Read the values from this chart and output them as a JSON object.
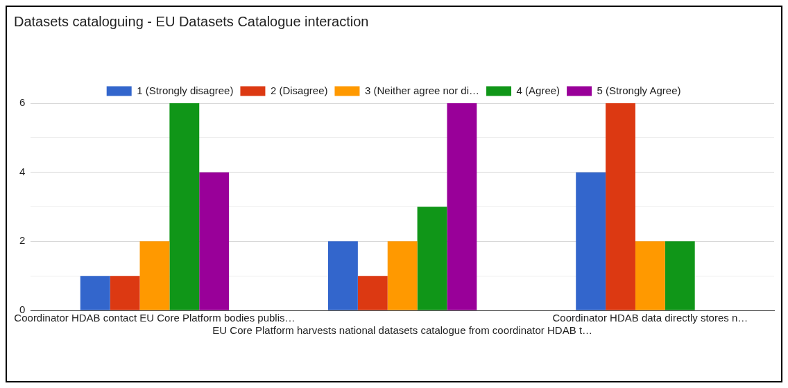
{
  "chart_data": {
    "type": "bar",
    "title": "Datasets cataloguing - EU Datasets Catalogue interaction",
    "categories": [
      "Coordinator HDAB contact EU Core Platform bodies publis…",
      "EU Core Platform harvests national datasets catalogue from coordinator HDAB t…",
      "Coordinator HDAB data directly stores n…"
    ],
    "series": [
      {
        "name": "1 (Strongly disagree)",
        "color": "#3366cc",
        "values": [
          1,
          2,
          4
        ]
      },
      {
        "name": "2 (Disagree)",
        "color": "#dc3912",
        "values": [
          1,
          1,
          6
        ]
      },
      {
        "name": "3 (Neither agree nor di…",
        "color": "#ff9900",
        "values": [
          2,
          2,
          2
        ]
      },
      {
        "name": "4 (Agree)",
        "color": "#109618",
        "values": [
          6,
          3,
          2
        ]
      },
      {
        "name": "5 (Strongly Agree)",
        "color": "#990099",
        "values": [
          4,
          6,
          0
        ]
      }
    ],
    "ylim": [
      0,
      6
    ],
    "yticks": [
      0,
      {
        "value": 1,
        "label": null
      },
      2,
      {
        "value": 3,
        "label": null
      },
      4,
      {
        "value": 5,
        "label": null
      },
      6
    ],
    "grid": "y",
    "legend": "top"
  }
}
